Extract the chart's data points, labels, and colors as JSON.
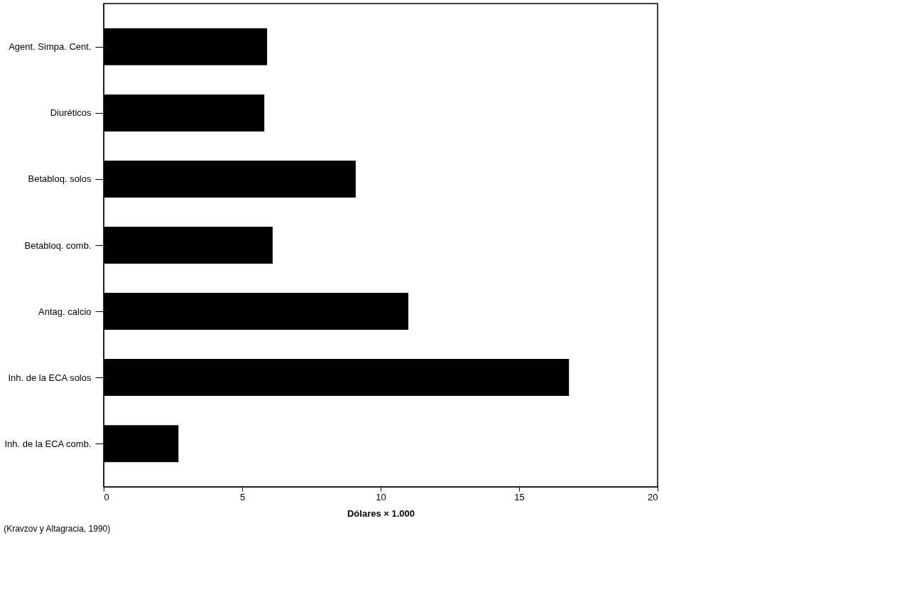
{
  "chart_data": {
    "type": "bar",
    "orientation": "horizontal",
    "xlabel": "Dólares × 1.000",
    "categories": [
      "Agent. Simpa. Cent.",
      "Diuréticos",
      "Betabloq. solos",
      "Betabloq. comb.",
      "Antag. calcio",
      "Inh. de la ECA solos",
      "Inh. de la ECA comb."
    ],
    "values": [
      5.9,
      5.8,
      9.1,
      6.1,
      11.0,
      16.8,
      2.7
    ],
    "color": "#000000",
    "xlim": [
      0,
      20
    ],
    "xticks": [
      0,
      5,
      10,
      15,
      20
    ],
    "grid": false,
    "annotations": [
      "(Kravzov y Altagracia, 1990)"
    ]
  }
}
